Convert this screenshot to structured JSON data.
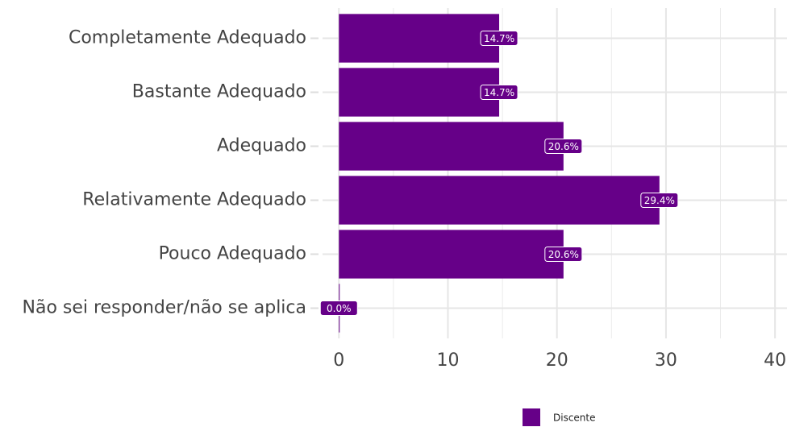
{
  "chart_data": {
    "type": "bar",
    "orientation": "horizontal",
    "categories": [
      "Completamente Adequado",
      "Bastante Adequado",
      "Adequado",
      "Relativamente Adequado",
      "Pouco Adequado",
      "Não sei responder/não se aplica"
    ],
    "series": [
      {
        "name": "Discente",
        "color": "#660088",
        "values": [
          14.7,
          14.7,
          20.6,
          29.4,
          20.6,
          0.0
        ],
        "value_labels": [
          "14.7%",
          "14.7%",
          "20.6%",
          "29.4%",
          "20.6%",
          "0.0%"
        ]
      }
    ],
    "xlim": [
      -1.5,
      41.1
    ],
    "xticks": [
      0,
      10,
      20,
      30,
      40
    ],
    "grid": true,
    "legend": "bottom"
  }
}
